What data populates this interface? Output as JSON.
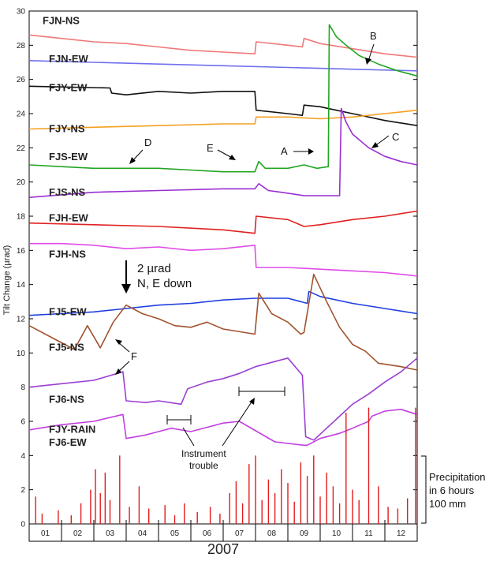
{
  "chart_data": {
    "type": "line",
    "title": "",
    "xlabel": "2007",
    "ylabel": "Tilt Change (µrad)",
    "ylim": [
      0,
      30
    ],
    "yticks": [
      0,
      2,
      4,
      6,
      8,
      10,
      12,
      14,
      16,
      18,
      20,
      22,
      24,
      26,
      28,
      30
    ],
    "xlim": [
      0,
      12
    ],
    "month_labels": [
      "01",
      "02",
      "03",
      "04",
      "05",
      "06",
      "07",
      "08",
      "09",
      "10",
      "11",
      "12"
    ],
    "scale_note": {
      "line1": "2 µrad",
      "line2": "N, E down"
    },
    "precipitation_note": {
      "line1": "Precipitation",
      "line2": "in 6 hours",
      "line3": "100 mm"
    },
    "annotations": {
      "A": "A",
      "B": "B",
      "C": "C",
      "D": "D",
      "E": "E",
      "F": "F",
      "instrument_trouble_line1": "Instrument",
      "instrument_trouble_line2": "trouble"
    },
    "series": [
      {
        "name": "FJN-NS",
        "color": "#f07878",
        "x": [
          0,
          1,
          2,
          3,
          4,
          5,
          6,
          6.98,
          7.02,
          8,
          8.45,
          8.5,
          9,
          10,
          11,
          12
        ],
        "y": [
          28.6,
          28.4,
          28.2,
          28.1,
          27.9,
          27.7,
          27.6,
          27.5,
          28.2,
          28.0,
          27.9,
          28.4,
          28.1,
          27.8,
          27.5,
          27.3
        ]
      },
      {
        "name": "FJN-EW",
        "color": "#6f6fee",
        "x": [
          0,
          2,
          4,
          6,
          8,
          10,
          12
        ],
        "y": [
          27.1,
          27.0,
          26.9,
          26.8,
          26.7,
          26.6,
          26.5
        ]
      },
      {
        "name": "FJY-EW",
        "color": "#111111",
        "x": [
          0,
          2.5,
          2.55,
          3,
          4,
          5,
          6,
          6.98,
          7.02,
          8,
          8.45,
          8.5,
          9,
          9.5,
          10,
          11,
          12
        ],
        "y": [
          25.6,
          25.5,
          25.2,
          25.1,
          25.3,
          25.2,
          25.3,
          25.3,
          24.2,
          24.0,
          23.9,
          24.5,
          24.4,
          24.2,
          24.0,
          23.6,
          23.3
        ]
      },
      {
        "name": "FJY-NS",
        "color": "#f4a020",
        "x": [
          0,
          2,
          4,
          6,
          6.98,
          7.02,
          8,
          9,
          10,
          11,
          12
        ],
        "y": [
          23.1,
          23.2,
          23.3,
          23.4,
          23.4,
          23.8,
          23.8,
          23.7,
          23.8,
          24.0,
          24.2
        ]
      },
      {
        "name": "FJS-EW",
        "color": "#22a522",
        "x": [
          0,
          1,
          2,
          3,
          4,
          5,
          6,
          6.98,
          7.1,
          7.3,
          7.6,
          8,
          8.5,
          8.9,
          9.25,
          9.28,
          9.5,
          9.8,
          10.2,
          10.8,
          11.4,
          12
        ],
        "y": [
          21.0,
          20.9,
          20.8,
          20.8,
          20.8,
          20.7,
          20.6,
          20.6,
          21.2,
          20.8,
          20.8,
          20.8,
          21.0,
          20.8,
          20.9,
          29.2,
          28.5,
          28.0,
          27.4,
          26.9,
          26.5,
          26.2
        ]
      },
      {
        "name": "FJS-NS",
        "color": "#9a2fd0",
        "x": [
          0,
          2,
          4,
          6,
          6.98,
          7.1,
          7.4,
          7.8,
          8.5,
          9,
          9.6,
          9.65,
          9.8,
          10,
          10.5,
          11,
          11.5,
          12
        ],
        "y": [
          19.1,
          19.4,
          19.5,
          19.6,
          19.6,
          19.9,
          19.5,
          19.4,
          19.2,
          19.2,
          19.2,
          24.3,
          23.5,
          22.8,
          22.0,
          21.5,
          21.2,
          21.0
        ]
      },
      {
        "name": "FJH-EW",
        "color": "#e02020",
        "x": [
          0,
          2,
          4,
          6,
          6.98,
          7.02,
          8,
          8.5,
          9,
          10,
          11,
          12
        ],
        "y": [
          17.6,
          17.5,
          17.4,
          17.2,
          17.0,
          18.0,
          17.8,
          17.4,
          17.5,
          17.8,
          18.0,
          18.3
        ]
      },
      {
        "name": "FJH-NS",
        "color": "#e04ce8",
        "x": [
          0,
          1,
          2,
          3,
          4,
          5,
          6,
          6.98,
          7.02,
          8,
          9,
          10,
          11,
          12
        ],
        "y": [
          16.4,
          16.4,
          16.3,
          16.1,
          16.2,
          16.0,
          16.1,
          16.3,
          15.0,
          15.0,
          14.9,
          14.8,
          14.7,
          14.5
        ]
      },
      {
        "name": "FJ5-EW",
        "color": "#1f3fe0",
        "x": [
          0,
          1,
          2,
          3,
          4,
          5,
          6,
          7,
          8,
          8.6,
          8.65,
          9,
          10,
          11,
          12
        ],
        "y": [
          12.2,
          12.3,
          12.4,
          12.6,
          12.8,
          12.9,
          13.1,
          13.2,
          13.2,
          12.9,
          13.6,
          13.3,
          12.9,
          12.6,
          12.3
        ]
      },
      {
        "name": "FJ5-NS",
        "color": "#a0522d",
        "x": [
          0,
          0.8,
          1.4,
          1.8,
          2.2,
          2.6,
          3,
          3.5,
          4,
          4.5,
          5,
          5.5,
          6,
          6.98,
          7.1,
          7.5,
          8,
          8.4,
          8.5,
          8.8,
          9.2,
          9.6,
          10,
          10.4,
          10.8,
          11.5,
          12
        ],
        "y": [
          11.6,
          10.8,
          10.2,
          11.6,
          10.3,
          11.8,
          12.8,
          12.3,
          12.0,
          11.6,
          11.5,
          11.8,
          11.4,
          11.1,
          13.5,
          12.3,
          11.8,
          11.1,
          11.2,
          14.6,
          13.0,
          11.5,
          10.5,
          10.1,
          9.4,
          9.2,
          9.0
        ]
      },
      {
        "name": "FJ6-NS",
        "color": "#9b3fd3",
        "x": [
          0,
          1,
          2,
          2.9,
          3,
          3.6,
          4,
          4.7,
          4.9,
          5.5,
          6,
          6.5,
          7,
          7.6,
          8,
          8.45,
          8.55,
          8.8,
          9.2,
          9.6,
          10,
          10.5,
          11,
          11.5,
          12
        ],
        "y": [
          8.0,
          8.2,
          8.4,
          8.9,
          7.2,
          7.1,
          7.2,
          7.0,
          7.9,
          8.3,
          8.5,
          8.8,
          9.2,
          9.5,
          9.7,
          8.7,
          5.1,
          4.9,
          5.6,
          6.3,
          7.0,
          7.6,
          8.3,
          8.9,
          9.7
        ]
      },
      {
        "name": "FJ6-EW",
        "color": "#c23fe0",
        "x": [
          0,
          1,
          2,
          2.9,
          3,
          3.6,
          4,
          4.4,
          5.0,
          5.6,
          6,
          6.5,
          7.6,
          8.5,
          8.6,
          9,
          9.6,
          10,
          10.5,
          10.6,
          11,
          11.5,
          12
        ],
        "y": [
          5.5,
          5.8,
          6.0,
          6.4,
          5.0,
          5.2,
          5.4,
          5.6,
          5.4,
          5.7,
          5.9,
          6.0,
          4.8,
          4.6,
          4.6,
          5.0,
          5.3,
          5.6,
          6.0,
          6.3,
          6.6,
          6.7,
          6.4
        ]
      },
      {
        "name": "FJY-RAIN",
        "color": "#e41a1c",
        "x": [
          0.2,
          0.4,
          0.9,
          1.3,
          1.6,
          1.9,
          2.05,
          2.2,
          2.35,
          2.5,
          2.8,
          3.1,
          3.4,
          3.7,
          4.2,
          4.5,
          4.8,
          5.2,
          5.6,
          5.9,
          6.2,
          6.4,
          6.6,
          6.8,
          7.0,
          7.2,
          7.4,
          7.6,
          7.8,
          8.0,
          8.2,
          8.4,
          8.6,
          8.8,
          9.0,
          9.2,
          9.4,
          9.6,
          9.8,
          10.0,
          10.2,
          10.5,
          10.8,
          11.1,
          11.4,
          11.7,
          11.95
        ],
        "y": [
          1.6,
          0.6,
          0.8,
          0.5,
          1.2,
          2.0,
          3.2,
          1.8,
          3.0,
          1.4,
          4.0,
          1.0,
          2.2,
          0.9,
          1.1,
          0.5,
          1.2,
          0.7,
          1.0,
          0.6,
          1.8,
          2.5,
          1.2,
          3.5,
          4.0,
          1.4,
          2.6,
          1.8,
          3.2,
          2.4,
          1.3,
          3.6,
          2.8,
          4.0,
          1.6,
          3.0,
          2.2,
          1.2,
          6.5,
          2.0,
          1.4,
          6.8,
          2.2,
          1.0,
          0.9,
          1.5,
          6.8
        ]
      }
    ]
  }
}
